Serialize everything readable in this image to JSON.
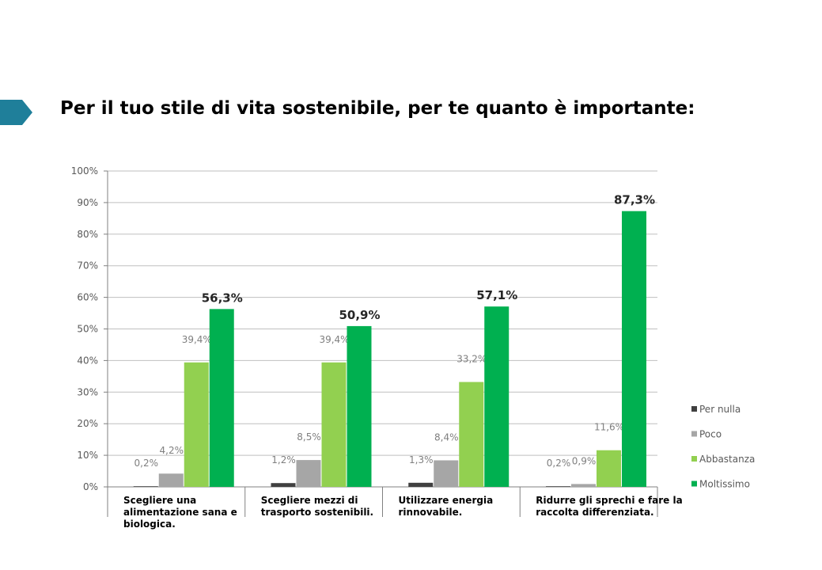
{
  "page": {
    "title": "Per il tuo stile di vita sostenibile, per te quanto è importante:"
  },
  "chart_data": {
    "type": "bar",
    "title": "",
    "xlabel": "",
    "ylabel": "",
    "ylim": [
      0,
      100
    ],
    "yticks": [
      "0%",
      "10%",
      "20%",
      "30%",
      "40%",
      "50%",
      "60%",
      "70%",
      "80%",
      "90%",
      "100%"
    ],
    "grid": true,
    "legend_position": "right",
    "categories": [
      [
        "Scegliere una",
        "alimentazione sana e",
        "biologica."
      ],
      [
        "Scegliere mezzi di",
        "trasporto sostenibili."
      ],
      [
        "Utilizzare energia",
        "rinnovabile."
      ],
      [
        "Ridurre gli sprechi e fare la",
        "raccolta differenziata."
      ]
    ],
    "series": [
      {
        "name": "Per nulla",
        "color": "#404040",
        "values": [
          0.2,
          1.2,
          1.3,
          0.2
        ],
        "labels": [
          "0,2%",
          "1,2%",
          "1,3%",
          "0,2%"
        ]
      },
      {
        "name": "Poco",
        "color": "#a6a6a6",
        "values": [
          4.2,
          8.5,
          8.4,
          0.9
        ],
        "labels": [
          "4,2%",
          "8,5%",
          "8,4%",
          "0,9%"
        ]
      },
      {
        "name": "Abbastanza",
        "color": "#92d050",
        "values": [
          39.4,
          39.4,
          33.2,
          11.6
        ],
        "labels": [
          "39,4%",
          "39,4%",
          "33,2%",
          "11,6%"
        ]
      },
      {
        "name": "Moltissimo",
        "color": "#00b050",
        "values": [
          56.3,
          50.9,
          57.1,
          87.3
        ],
        "labels": [
          "56,3%",
          "50,9%",
          "57,1%",
          "87,3%"
        ]
      }
    ]
  },
  "colors": {
    "marker": "#1f7f9a",
    "grid": "#bfbfbf",
    "axis": "#808080"
  }
}
